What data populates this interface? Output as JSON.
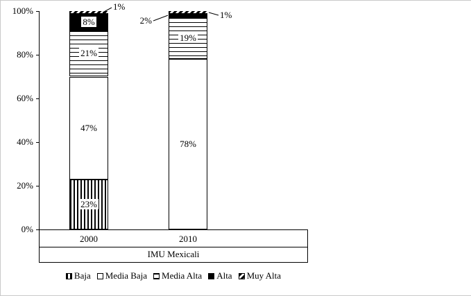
{
  "chart_data": {
    "type": "bar",
    "subtype": "stacked-100-percent-column",
    "title": "",
    "categories": [
      "2000",
      "2010"
    ],
    "series": [
      {
        "name": "Baja",
        "values": [
          23,
          0
        ],
        "pattern": "vertical-stripes"
      },
      {
        "name": "Media Baja",
        "values": [
          47,
          78
        ],
        "pattern": "solid-white"
      },
      {
        "name": "Media Alta",
        "values": [
          21,
          19
        ],
        "pattern": "horizontal-stripes"
      },
      {
        "name": "Alta",
        "values": [
          8,
          2
        ],
        "pattern": "solid-black"
      },
      {
        "name": "Muy Alta",
        "values": [
          1,
          1
        ],
        "pattern": "dashed"
      }
    ],
    "xlabel": "IMU Mexicali",
    "ylabel": "",
    "ylim": [
      0,
      100
    ],
    "y_ticks": [
      "0%",
      "20%",
      "40%",
      "60%",
      "80%",
      "100%"
    ],
    "data_label_format": "percent",
    "grid": false,
    "legend_position": "bottom",
    "colors": {
      "foreground": "#000000",
      "background": "#ffffff",
      "frame_border": "#c9c9c9"
    }
  }
}
